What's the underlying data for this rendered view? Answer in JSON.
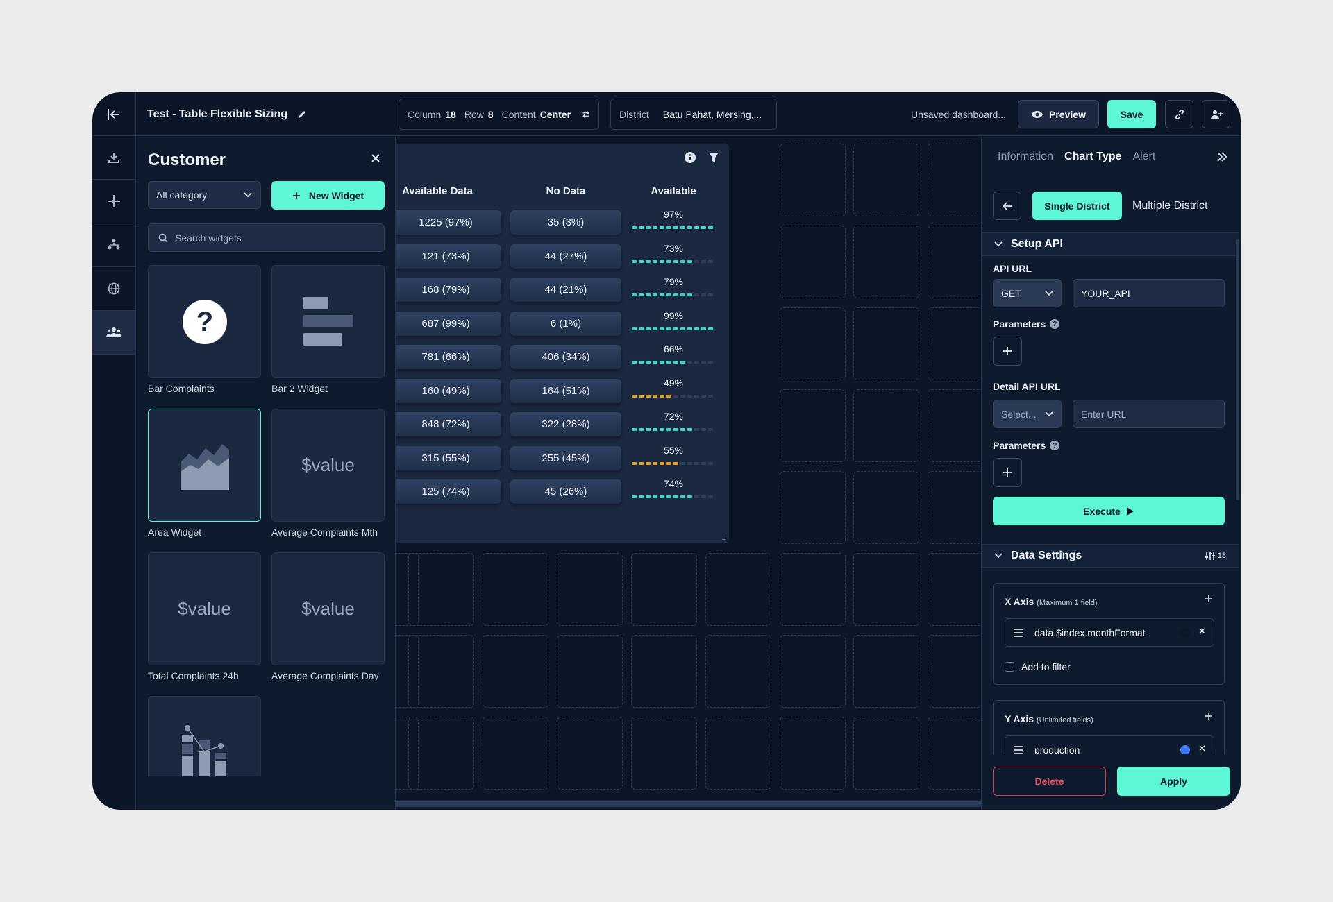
{
  "header": {
    "title": "Test - Table Flexible Sizing",
    "layout_pill": {
      "column_label": "Column",
      "column_value": "18",
      "row_label": "Row",
      "row_value": "8",
      "content_label": "Content",
      "content_value": "Center"
    },
    "district_pill": {
      "label": "District",
      "value": "Batu Pahat, Mersing,..."
    },
    "status": "Unsaved dashboard...",
    "preview_label": "Preview",
    "save_label": "Save"
  },
  "widgets_panel": {
    "title": "Customer",
    "category_select": "All category",
    "new_widget_label": "New Widget",
    "search_placeholder": "Search widgets",
    "widgets": [
      {
        "label": "Bar Complaints",
        "preview": "question-icon"
      },
      {
        "label": "Bar 2 Widget",
        "preview": "bar-icon"
      },
      {
        "label": "Area Widget",
        "preview": "area-chart-icon"
      },
      {
        "label": "Average Complaints Mth",
        "preview_text": "$value"
      },
      {
        "label": "Total Complaints 24h",
        "preview_text": "$value"
      },
      {
        "label": "Average Complaints Day",
        "preview_text": "$value"
      },
      {
        "label": "",
        "preview": "stacked-bar-icon"
      }
    ]
  },
  "table_widget": {
    "headers": [
      "Available Data",
      "No Data",
      "Available"
    ],
    "rows": [
      {
        "available_data": "1225 (97%)",
        "no_data": "35 (3%)",
        "available": "97%",
        "fraction": 0.97,
        "color": "#3fd6bd"
      },
      {
        "available_data": "121 (73%)",
        "no_data": "44 (27%)",
        "available": "73%",
        "fraction": 0.73,
        "color": "#3fd6bd"
      },
      {
        "available_data": "168 (79%)",
        "no_data": "44 (21%)",
        "available": "79%",
        "fraction": 0.79,
        "color": "#3fd6bd"
      },
      {
        "available_data": "687 (99%)",
        "no_data": "6 (1%)",
        "available": "99%",
        "fraction": 0.99,
        "color": "#3fd6bd"
      },
      {
        "available_data": "781 (66%)",
        "no_data": "406 (34%)",
        "available": "66%",
        "fraction": 0.66,
        "color": "#3fd6bd"
      },
      {
        "available_data": "160 (49%)",
        "no_data": "164 (51%)",
        "available": "49%",
        "fraction": 0.49,
        "color": "#e0a02a"
      },
      {
        "available_data": "848 (72%)",
        "no_data": "322 (28%)",
        "available": "72%",
        "fraction": 0.72,
        "color": "#3fd6bd"
      },
      {
        "available_data": "315 (55%)",
        "no_data": "255 (45%)",
        "available": "55%",
        "fraction": 0.55,
        "color": "#e0a02a"
      },
      {
        "available_data": "125 (74%)",
        "no_data": "45 (26%)",
        "available": "74%",
        "fraction": 0.74,
        "color": "#3fd6bd"
      }
    ]
  },
  "settings_panel": {
    "tabs": [
      "Information",
      "Chart Type",
      "Alert"
    ],
    "active_tab": "Chart Type",
    "district_mode": {
      "single": "Single District",
      "multiple": "Multiple District"
    },
    "setup_api": {
      "title": "Setup API",
      "api_url_label": "API URL",
      "method": "GET",
      "api_url_value": "YOUR_API",
      "parameters_label": "Parameters",
      "detail_api_url_label": "Detail API URL",
      "detail_method_placeholder": "Select...",
      "detail_url_placeholder": "Enter URL",
      "parameters_label_2": "Parameters",
      "execute_label": "Execute"
    },
    "data_settings": {
      "title": "Data Settings",
      "field_count": "18",
      "x_axis": {
        "title": "X Axis",
        "hint": "(Maximum 1 field)",
        "field": "data.$index.monthFormat",
        "field_color": "#0b1628",
        "add_to_filter": "Add to filter"
      },
      "y_axis": {
        "title": "Y Axis",
        "hint": "(Unlimited fields)",
        "field": "production",
        "field_color": "#3b7cf5"
      }
    },
    "delete_label": "Delete",
    "apply_label": "Apply"
  },
  "colors": {
    "accent": "#5ef7d6",
    "background": "#0b1628",
    "danger": "#e2495a"
  }
}
